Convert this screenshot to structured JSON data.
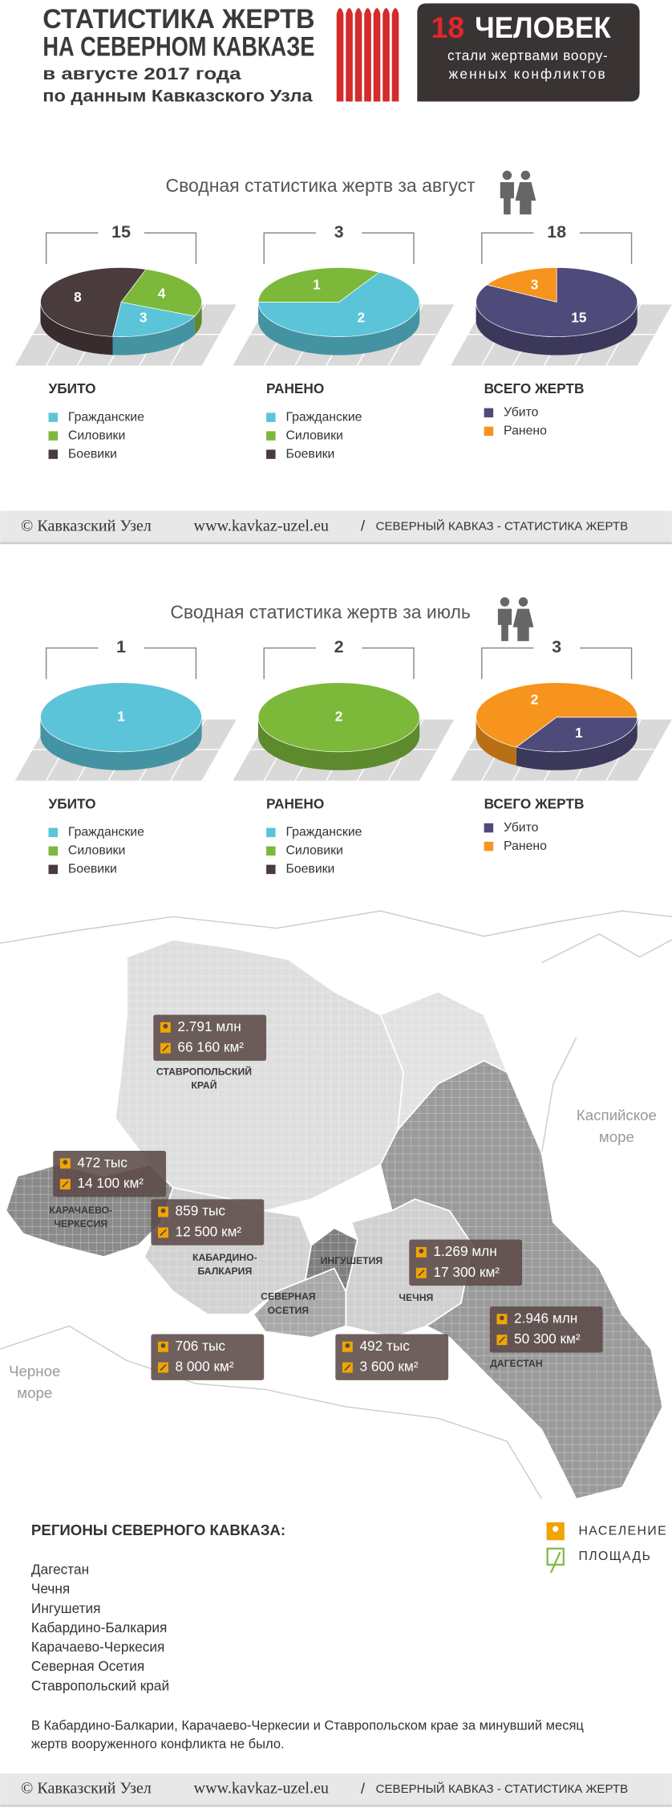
{
  "header": {
    "title": [
      "СТАТИСТИКА ЖЕРТВ",
      "НА СЕВЕРНОМ КАВКАЗЕ"
    ],
    "subtitle": [
      "в августе 2017 года",
      "по данным Кавказского Узла"
    ],
    "badge": {
      "number": 18,
      "word": "ЧЕЛОВЕК",
      "text": [
        "стали жертвами воору-",
        "женных конфликтов"
      ]
    }
  },
  "sections": [
    "Сводная статистика жертв за август",
    "Сводная статистика жертв за июль"
  ],
  "chart_data": [
    {
      "type": "pie",
      "title": "УБИТО",
      "total": 15,
      "categories": [
        "Гражданские",
        "Силовики",
        "Боевики"
      ],
      "values": [
        3,
        4,
        8
      ],
      "colors": [
        "#5bc4d9",
        "#7cb83a",
        "#4a3b3d"
      ]
    },
    {
      "type": "pie",
      "title": "РАНЕНО",
      "total": 3,
      "categories": [
        "Гражданские",
        "Силовики",
        "Боевики"
      ],
      "values": [
        2,
        1,
        0
      ],
      "colors": [
        "#5bc4d9",
        "#7cb83a",
        "#4a3b3d"
      ]
    },
    {
      "type": "pie",
      "title": "ВСЕГО ЖЕРТВ",
      "total": 18,
      "categories": [
        "Убито",
        "Ранено"
      ],
      "values": [
        15,
        3
      ],
      "colors": [
        "#4e4a7a",
        "#f7941d"
      ]
    },
    {
      "type": "pie",
      "title": "УБИТО",
      "total": 1,
      "categories": [
        "Гражданские",
        "Силовики",
        "Боевики"
      ],
      "values": [
        1,
        0,
        0
      ],
      "colors": [
        "#5bc4d9",
        "#7cb83a",
        "#4a3b3d"
      ]
    },
    {
      "type": "pie",
      "title": "РАНЕНО",
      "total": 2,
      "categories": [
        "Гражданские",
        "Силовики",
        "Боевики"
      ],
      "values": [
        0,
        2,
        0
      ],
      "colors": [
        "#5bc4d9",
        "#7cb83a",
        "#4a3b3d"
      ]
    },
    {
      "type": "pie",
      "title": "ВСЕГО ЖЕРТВ",
      "total": 3,
      "categories": [
        "Убито",
        "Ранено"
      ],
      "values": [
        1,
        2
      ],
      "colors": [
        "#4e4a7a",
        "#f7941d"
      ]
    }
  ],
  "footer": {
    "copyright": "© Кавказский Узел",
    "url": "www.kavkaz-uzel.eu",
    "separator": "/",
    "caption": "СЕВЕРНЫЙ КАВКАЗ - СТАТИСТИКА ЖЕРТВ"
  },
  "map": {
    "regions": [
      {
        "name": [
          "СТАВРОПОЛЬСКИЙ",
          "КРАЙ"
        ],
        "population": "2.791 млн",
        "area": "66 160 км²"
      },
      {
        "name": [
          "КАРАЧАЕВО-",
          "ЧЕРКЕСИЯ"
        ],
        "population": "472 тыс",
        "area": "14 100 км²"
      },
      {
        "name": [
          "КАБАРДИНО-",
          "БАЛКАРИЯ"
        ],
        "population": "859 тыс",
        "area": "12 500 км²"
      },
      {
        "name": [
          "СЕВЕРНАЯ",
          "ОСЕТИЯ"
        ],
        "population": "706 тыс",
        "area": "8 000 км²"
      },
      {
        "name": [
          "ИНГУШЕТИЯ"
        ],
        "population": "492 тыс",
        "area": "3 600 км²"
      },
      {
        "name": [
          "ЧЕЧНЯ"
        ],
        "population": "1.269 млн",
        "area": "17 300 км²"
      },
      {
        "name": [
          "ДАГЕСТАН"
        ],
        "population": "2.946 млн",
        "area": "50 300 км²"
      }
    ],
    "seas": [
      [
        "Каспийское",
        "море"
      ],
      [
        "Черное",
        "море"
      ]
    ]
  },
  "regions": {
    "title": "РЕГИОНЫ СЕВЕРНОГО КАВКАЗА:",
    "list": [
      "Дагестан",
      "Чечня",
      "Ингушетия",
      "Кабардино-Балкария",
      "Карачаево-Черкесия",
      "Северная Осетия",
      "Ставропольский край"
    ],
    "note": [
      "В Кабардино-Балкарии, Карачаево-Черкесии и Ставропольском крае  за минувший месяц",
      "жертв вооруженного конфликта не было."
    ],
    "key": [
      "НАСЕЛЕНИЕ",
      "ПЛОЩАДЬ"
    ]
  }
}
